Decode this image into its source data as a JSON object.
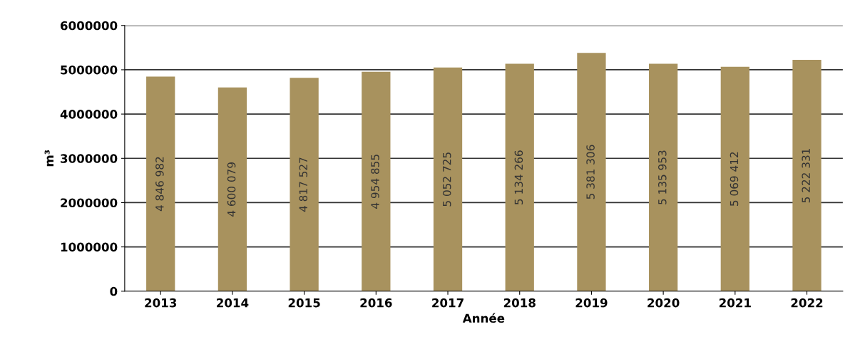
{
  "chart_data": {
    "type": "bar",
    "xlabel": "Année",
    "ylabel": "m³",
    "categories": [
      "2013",
      "2014",
      "2015",
      "2016",
      "2017",
      "2018",
      "2019",
      "2020",
      "2021",
      "2022"
    ],
    "values": [
      4846982,
      4600079,
      4817527,
      4954855,
      5052725,
      5134266,
      5381306,
      5135953,
      5069412,
      5222331
    ],
    "value_labels": [
      "4 846 982",
      "4 600 079",
      "4 817 527",
      "4 954 855",
      "5 052 725",
      "5 134 266",
      "5 381 306",
      "5 135 953",
      "5 069 412",
      "5 222 331"
    ],
    "color": "#a8925e",
    "ylim": [
      0,
      6000000
    ],
    "yticks": [
      0,
      1000000,
      2000000,
      3000000,
      4000000,
      5000000,
      6000000
    ],
    "grid": "y",
    "legend": false
  }
}
